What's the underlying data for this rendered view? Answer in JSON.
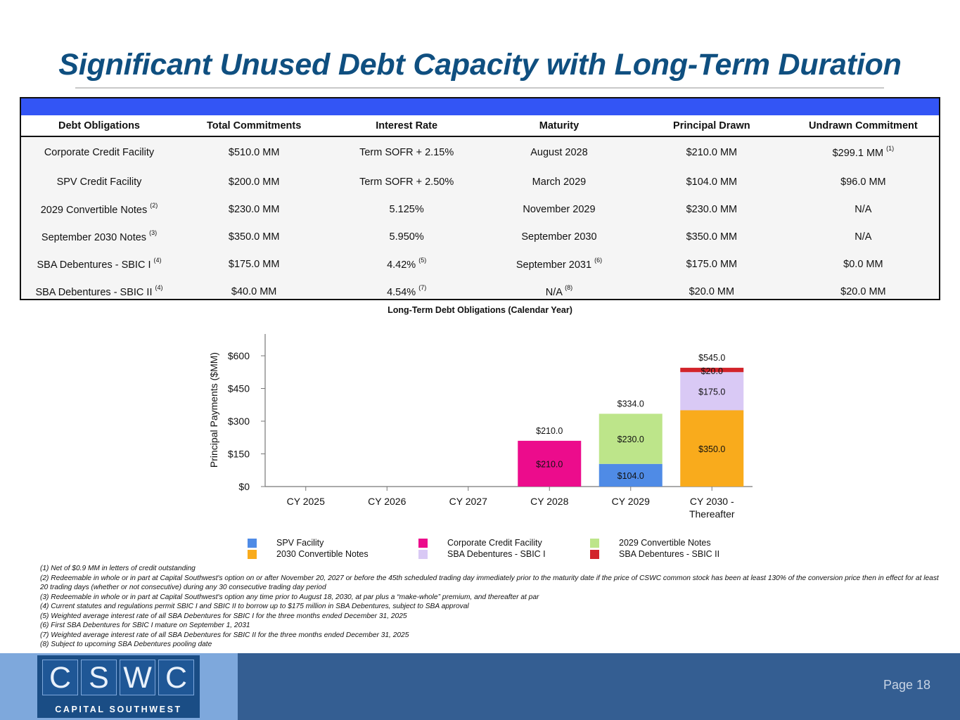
{
  "header": {
    "title": "Significant Unused Debt Capacity with Long-Term Duration"
  },
  "debt_table": {
    "columns": [
      "Debt Obligations",
      "Total Commitments",
      "Interest Rate",
      "Maturity",
      "Principal Drawn",
      "Undrawn Commitment"
    ],
    "rows": [
      {
        "name": "Corporate Credit Facility",
        "name_note": "",
        "commitment": "$510.0 MM",
        "rate": "Term SOFR + 2.15%",
        "rate_note": "",
        "maturity": "August 2028",
        "maturity_note": "",
        "drawn": "$210.0 MM",
        "undrawn": "$299.1 MM",
        "undrawn_note": "(1)"
      },
      {
        "name": "SPV Credit Facility",
        "name_note": "",
        "commitment": "$200.0 MM",
        "rate": "Term SOFR + 2.50%",
        "rate_note": "",
        "maturity": "March 2029",
        "maturity_note": "",
        "drawn": "$104.0 MM",
        "undrawn": "$96.0 MM",
        "undrawn_note": ""
      },
      {
        "name": "2029 Convertible Notes",
        "name_note": "(2)",
        "commitment": "$230.0 MM",
        "rate": "5.125%",
        "rate_note": "",
        "maturity": "November 2029",
        "maturity_note": "",
        "drawn": "$230.0 MM",
        "undrawn": "N/A",
        "undrawn_note": ""
      },
      {
        "name": "September 2030 Notes",
        "name_note": "(3)",
        "commitment": "$350.0 MM",
        "rate": "5.950%",
        "rate_note": "",
        "maturity": "September 2030",
        "maturity_note": "",
        "drawn": "$350.0 MM",
        "undrawn": "N/A",
        "undrawn_note": ""
      },
      {
        "name": "SBA Debentures - SBIC I",
        "name_note": "(4)",
        "commitment": "$175.0 MM",
        "rate": "4.42%",
        "rate_note": "(5)",
        "maturity": "September 2031",
        "maturity_note": "(6)",
        "drawn": "$175.0 MM",
        "undrawn": "$0.0 MM",
        "undrawn_note": ""
      },
      {
        "name": "SBA Debentures - SBIC II",
        "name_note": "(4)",
        "commitment": "$40.0 MM",
        "rate": "4.54%",
        "rate_note": "(7)",
        "maturity": "N/A",
        "maturity_note": "(8)",
        "drawn": "$20.0 MM",
        "undrawn": "$20.0 MM",
        "undrawn_note": ""
      }
    ]
  },
  "chart_data": {
    "type": "bar",
    "stacked": true,
    "title": "Long-Term Debt Obligations (Calendar Year)",
    "ylabel": "Principal Payments ($MM)",
    "xlabel": "",
    "categories": [
      "CY 2025",
      "CY 2026",
      "CY 2027",
      "CY 2028",
      "CY 2029",
      "CY 2030 - Thereafter"
    ],
    "yticks": [
      "$0",
      "$150",
      "$300",
      "$450",
      "$600"
    ],
    "ylim": [
      0,
      700
    ],
    "series": [
      {
        "name": "SPV Facility",
        "color": "#4f8be6",
        "values": [
          0,
          0,
          0,
          0,
          104.0,
          0
        ]
      },
      {
        "name": "Corporate Credit Facility",
        "color": "#ec0c8c",
        "values": [
          0,
          0,
          0,
          210.0,
          0,
          0
        ]
      },
      {
        "name": "2029 Convertible Notes",
        "color": "#bde58a",
        "values": [
          0,
          0,
          0,
          0,
          230.0,
          0
        ]
      },
      {
        "name": "2030 Convertible Notes",
        "color": "#f9ab1c",
        "values": [
          0,
          0,
          0,
          0,
          0,
          350.0
        ]
      },
      {
        "name": "SBA Debentures - SBIC I",
        "color": "#d9c9f5",
        "values": [
          0,
          0,
          0,
          0,
          0,
          175.0
        ]
      },
      {
        "name": "SBA Debentures - SBIC II",
        "color": "#d2232a",
        "values": [
          0,
          0,
          0,
          0,
          0,
          20.0
        ]
      }
    ],
    "segment_labels": [
      {
        "category": 3,
        "series": 1,
        "text": "$210.0"
      },
      {
        "category": 4,
        "series": 0,
        "text": "$104.0"
      },
      {
        "category": 4,
        "series": 2,
        "text": "$230.0"
      },
      {
        "category": 5,
        "series": 3,
        "text": "$350.0"
      },
      {
        "category": 5,
        "series": 4,
        "text": "$175.0"
      },
      {
        "category": 5,
        "series": 5,
        "text": "$20.0"
      }
    ],
    "totals": [
      {
        "category": 3,
        "text": "$210.0"
      },
      {
        "category": 4,
        "text": "$334.0"
      },
      {
        "category": 5,
        "text": "$545.0"
      }
    ],
    "grid": false,
    "legend_position": "bottom"
  },
  "footnotes": [
    "(1) Net of $0.9 MM in letters of credit outstanding",
    "(2) Redeemable in whole or in part at Capital Southwest's option on or after November 20, 2027 or before the 45th scheduled trading day immediately prior to the maturity date if the price of CSWC common stock has been at least 130% of the conversion price then in effect for at least 20 trading days (whether or not consecutive) during any 30 consecutive trading day period",
    "(3) Redeemable in whole or in part at Capital Southwest's option any time prior to August 18, 2030, at par plus a “make-whole” premium, and thereafter at par",
    "(4) Current statutes and regulations permit SBIC I and SBIC II to borrow up to $175 million in SBA Debentures, subject to SBA approval",
    "(5) Weighted average interest rate of all SBA Debentures for SBIC I for the three months ended December 31, 2025",
    "(6) First SBA Debentures for SBIC I mature on September 1, 2031",
    "(7) Weighted average interest rate of all SBA Debentures for SBIC II for the three months ended December 31, 2025",
    "(8) Subject to upcoming SBA Debentures pooling date"
  ],
  "footer": {
    "logo_letters": [
      "C",
      "S",
      "W",
      "C"
    ],
    "logo_tagline": "CAPITAL SOUTHWEST",
    "page_label": "Page 18"
  }
}
